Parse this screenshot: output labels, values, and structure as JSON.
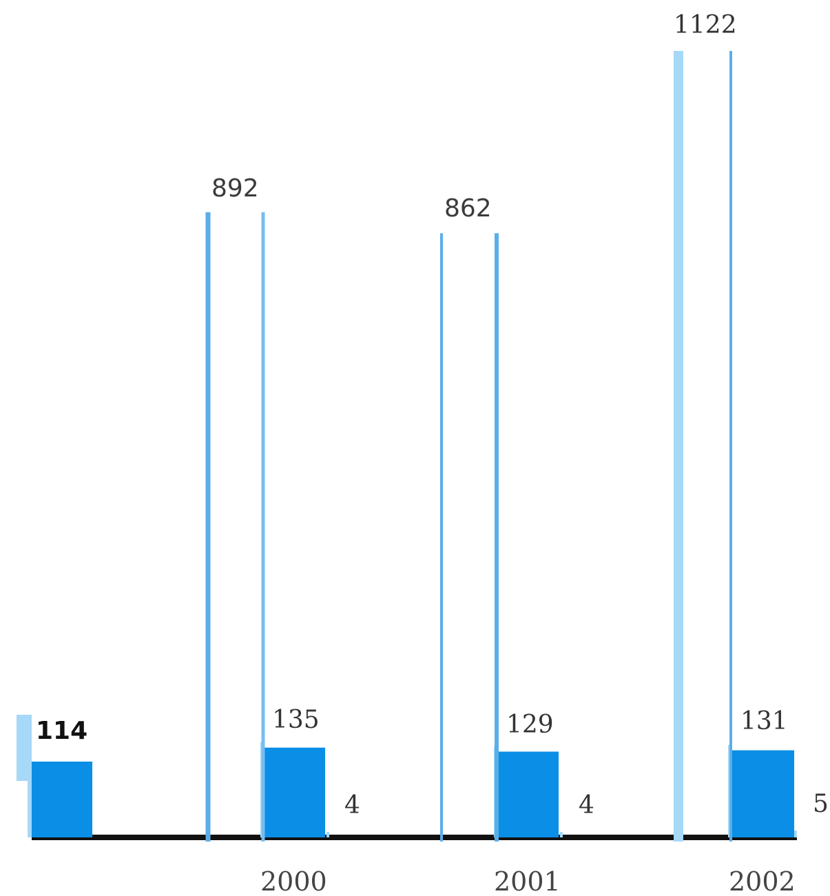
{
  "chart_data": {
    "type": "bar",
    "categories": [
      "",
      "2000",
      "2001",
      "2002"
    ],
    "series": [
      {
        "values": [
          114,
          135,
          129,
          131
        ]
      },
      {
        "values": [
          null,
          892,
          862,
          1122
        ]
      },
      {
        "values": [
          null,
          4,
          4,
          5
        ]
      }
    ],
    "value_labels": {
      "main": [
        "114",
        "135",
        "129",
        "131"
      ],
      "tall": [
        "892",
        "862",
        "1122"
      ],
      "small": [
        "4",
        "4",
        "5"
      ]
    },
    "xlabel": "",
    "ylabel": "",
    "grid": false,
    "legend": "none"
  },
  "colors": {
    "main_bar": "#0a8ee6",
    "tall_outline": "#5aaee8",
    "light": "#a6d8f7",
    "baseline": "#111111",
    "text": "#333333"
  }
}
